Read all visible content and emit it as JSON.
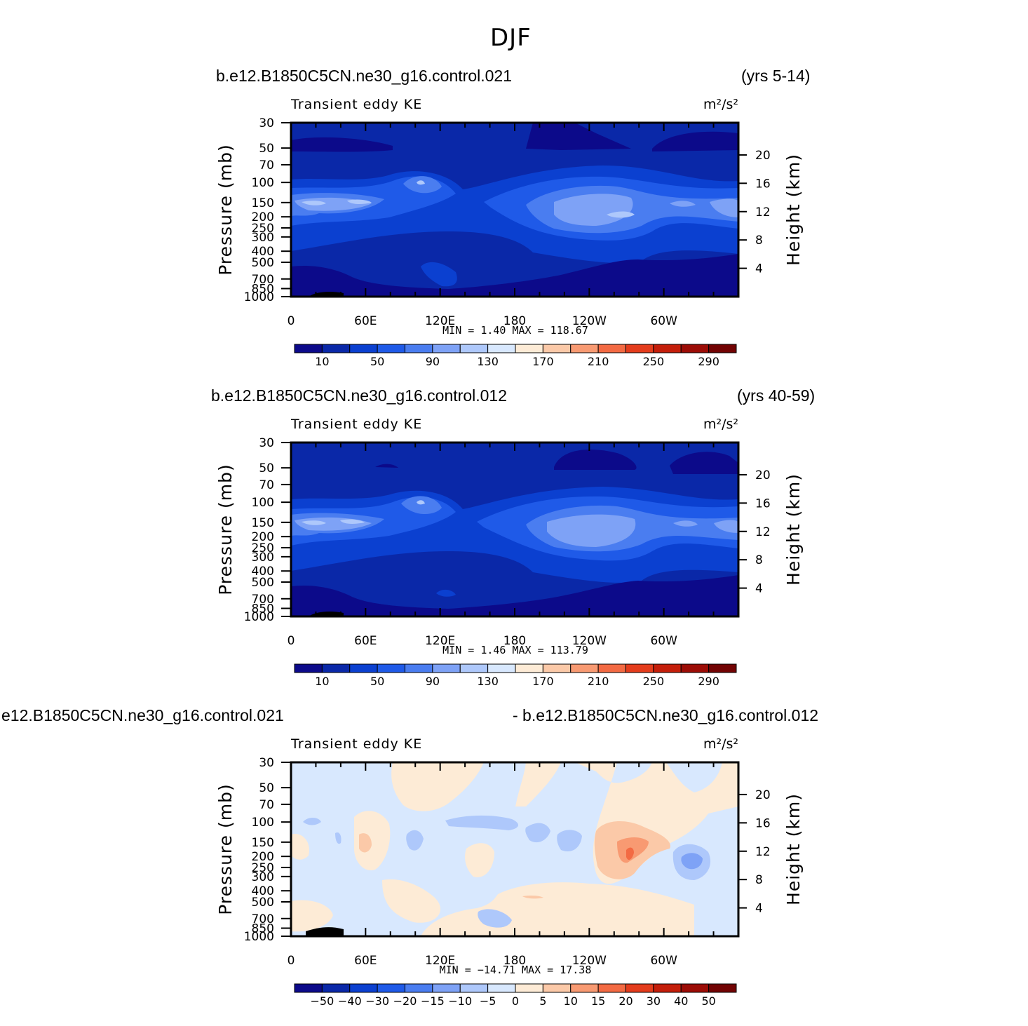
{
  "figure": {
    "title": "DJF",
    "panels": [
      {
        "case_left": "b.e12.B1850C5CN.ne30_g16.control.021",
        "case_right": "(yrs 5-14)",
        "variable": "Transient eddy KE",
        "units": "m²/s²",
        "stats": "MIN =    1.40   MAX = 118.67"
      },
      {
        "case_left": "b.e12.B1850C5CN.ne30_g16.control.012",
        "case_right": "(yrs 40-59)",
        "variable": "Transient eddy KE",
        "units": "m²/s²",
        "stats": "MIN =    1.46   MAX = 113.79"
      },
      {
        "case_left": "e12.B1850C5CN.ne30_g16.control.021",
        "case_right": "- b.e12.B1850C5CN.ne30_g16.control.012",
        "variable": "Transient eddy KE",
        "units": "m²/s²",
        "stats": "MIN = −14.71   MAX =   17.38"
      }
    ]
  },
  "chart_data": [
    {
      "type": "heatmap",
      "title": "Transient eddy KE",
      "xlabel": "",
      "ylabel": "Pressure (mb)",
      "y2label": "Height (km)",
      "x_ticks": [
        "0",
        "60E",
        "120E",
        "180",
        "120W",
        "60W"
      ],
      "y_ticks": [
        30,
        50,
        70,
        100,
        150,
        200,
        250,
        300,
        400,
        500,
        700,
        850,
        1000
      ],
      "y2_ticks": [
        20,
        16,
        12,
        8,
        4
      ],
      "colorbar_labels": [
        "10",
        "50",
        "90",
        "130",
        "170",
        "210",
        "250",
        "290"
      ],
      "colorbar_colors": [
        "#0c0a8a",
        "#0a28a8",
        "#0b40d0",
        "#1f5ae8",
        "#4a7df0",
        "#7ea2f6",
        "#aec8fb",
        "#d8e8fe",
        "#fdebd6",
        "#fbc9a8",
        "#f89a72",
        "#f36a43",
        "#e43c1c",
        "#c41e0a",
        "#9c0c06",
        "#720303"
      ],
      "min": 1.4,
      "max": 118.67
    },
    {
      "type": "heatmap",
      "title": "Transient eddy KE",
      "xlabel": "",
      "ylabel": "Pressure (mb)",
      "y2label": "Height (km)",
      "x_ticks": [
        "0",
        "60E",
        "120E",
        "180",
        "120W",
        "60W"
      ],
      "y_ticks": [
        30,
        50,
        70,
        100,
        150,
        200,
        250,
        300,
        400,
        500,
        700,
        850,
        1000
      ],
      "y2_ticks": [
        20,
        16,
        12,
        8,
        4
      ],
      "colorbar_labels": [
        "10",
        "50",
        "90",
        "130",
        "170",
        "210",
        "250",
        "290"
      ],
      "colorbar_colors": [
        "#0c0a8a",
        "#0a28a8",
        "#0b40d0",
        "#1f5ae8",
        "#4a7df0",
        "#7ea2f6",
        "#aec8fb",
        "#d8e8fe",
        "#fdebd6",
        "#fbc9a8",
        "#f89a72",
        "#f36a43",
        "#e43c1c",
        "#c41e0a",
        "#9c0c06",
        "#720303"
      ],
      "min": 1.46,
      "max": 113.79
    },
    {
      "type": "heatmap",
      "title": "Transient eddy KE",
      "xlabel": "",
      "ylabel": "Pressure (mb)",
      "y2label": "Height (km)",
      "x_ticks": [
        "0",
        "60E",
        "120E",
        "180",
        "120W",
        "60W"
      ],
      "y_ticks": [
        30,
        50,
        70,
        100,
        150,
        200,
        250,
        300,
        400,
        500,
        700,
        850,
        1000
      ],
      "y2_ticks": [
        20,
        16,
        12,
        8,
        4
      ],
      "colorbar_labels": [
        "−50",
        "−40",
        "−30",
        "−20",
        "−15",
        "−10",
        "−5",
        "0",
        "5",
        "10",
        "15",
        "20",
        "30",
        "40",
        "50"
      ],
      "colorbar_colors": [
        "#0c0a8a",
        "#0a28a8",
        "#0b40d0",
        "#1f5ae8",
        "#4a7df0",
        "#7ea2f6",
        "#aec8fb",
        "#d8e8fe",
        "#fdebd6",
        "#fbc9a8",
        "#f89a72",
        "#f36a43",
        "#e43c1c",
        "#c41e0a",
        "#9c0c06",
        "#720303"
      ],
      "min": -14.71,
      "max": 17.38
    }
  ]
}
